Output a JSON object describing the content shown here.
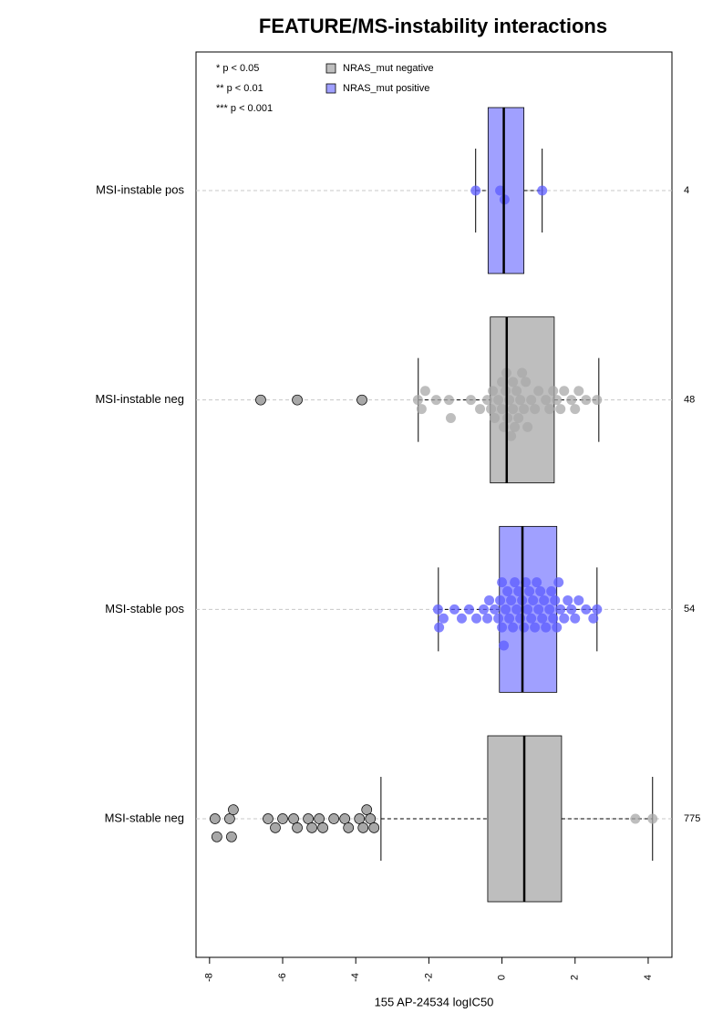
{
  "chart_data": {
    "type": "box",
    "title": "FEATURE/MS-instability interactions",
    "x_label": "155 AP-24534 logIC50",
    "categories": [
      "MSI-instable pos",
      "MSI-instable neg",
      "MSI-stable pos",
      "MSI-stable neg"
    ],
    "n_labels": [
      4,
      48,
      54,
      775
    ],
    "notes": [
      "* p < 0.05",
      "** p < 0.01",
      "*** p < 0.001"
    ],
    "xlim": [
      -8.37,
      4.65
    ],
    "xticks": [
      -8,
      -6,
      -4,
      -2,
      0,
      2,
      4
    ],
    "grid": true,
    "series": [
      {
        "name": "NRAS_mut negative",
        "color": "#bebebe",
        "point_color": "#a8a8a8",
        "boxes": [
          null,
          {
            "whislo": -2.29,
            "q1": -0.32,
            "med": 0.13,
            "q3": 1.43,
            "whishi": 2.65,
            "points": [
              -2.3,
              -2.2,
              -2.1,
              -1.8,
              -1.45,
              -1.4,
              -0.85,
              -0.6,
              -0.4,
              -0.3,
              -0.25,
              -0.2,
              -0.1,
              0.0,
              0.0,
              0.05,
              0.1,
              0.12,
              0.15,
              0.2,
              0.25,
              0.3,
              0.3,
              0.35,
              0.4,
              0.45,
              0.5,
              0.55,
              0.6,
              0.65,
              0.7,
              0.8,
              0.9,
              1.0,
              1.2,
              1.3,
              1.4,
              1.5,
              1.6,
              1.7,
              1.9,
              2.0,
              2.1,
              2.3,
              2.6
            ],
            "outliers": [
              -6.6,
              -5.6,
              -3.83
            ]
          },
          null,
          {
            "whislo": -3.31,
            "q1": -0.39,
            "med": 0.61,
            "q3": 1.63,
            "whishi": 4.12,
            "points": [
              3.65,
              4.12
            ],
            "outliers": [
              -7.85,
              -7.8,
              -7.45,
              -7.4,
              -7.35,
              -6.4,
              -6.2,
              -6.0,
              -5.7,
              -5.6,
              -5.3,
              -5.2,
              -5.0,
              -4.9,
              -4.6,
              -4.3,
              -4.2,
              -3.9,
              -3.8,
              -3.7,
              -3.6,
              -3.5
            ]
          }
        ]
      },
      {
        "name": "NRAS_mut positive",
        "color": "#a0a0ff",
        "point_color": "#5c5cff",
        "boxes": [
          {
            "whislo": -0.72,
            "q1": -0.38,
            "med": 0.05,
            "q3": 0.6,
            "whishi": 1.1,
            "points": [
              -0.72,
              -0.05,
              0.07,
              1.1
            ],
            "outliers": []
          },
          null,
          {
            "whislo": -1.74,
            "q1": -0.07,
            "med": 0.56,
            "q3": 1.5,
            "whishi": 2.6,
            "points": [
              -1.75,
              -1.72,
              -1.6,
              -1.3,
              -1.1,
              -0.9,
              -0.7,
              -0.5,
              -0.4,
              -0.35,
              -0.2,
              -0.1,
              -0.05,
              0.0,
              0.0,
              0.05,
              0.1,
              0.15,
              0.2,
              0.25,
              0.3,
              0.35,
              0.4,
              0.45,
              0.5,
              0.55,
              0.6,
              0.65,
              0.7,
              0.75,
              0.8,
              0.85,
              0.9,
              0.95,
              1.0,
              1.05,
              1.1,
              1.15,
              1.2,
              1.3,
              1.35,
              1.4,
              1.45,
              1.5,
              1.55,
              1.6,
              1.7,
              1.8,
              1.9,
              2.0,
              2.1,
              2.3,
              2.5,
              2.6
            ],
            "outliers": []
          },
          null
        ]
      }
    ]
  }
}
